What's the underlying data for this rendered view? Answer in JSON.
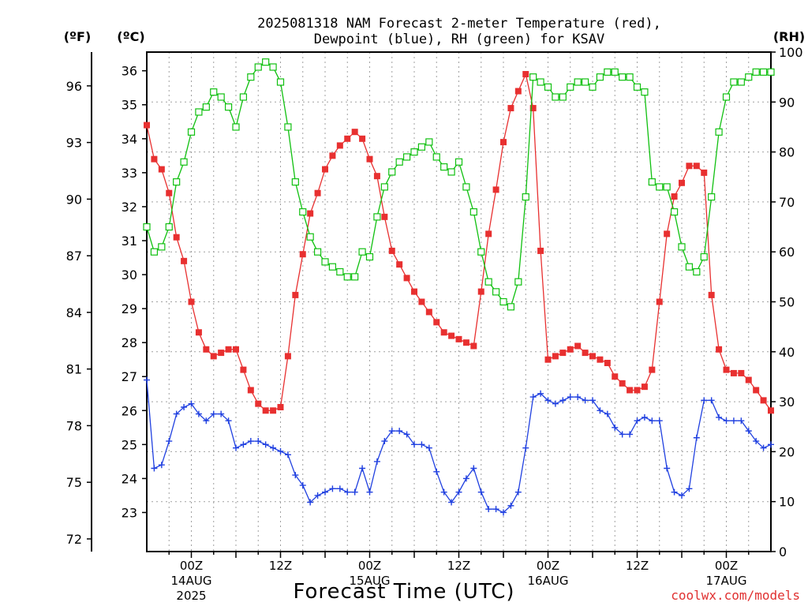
{
  "title": {
    "line1": "2025081318 NAM Forecast 2-meter Temperature (red),",
    "line2": "Dewpoint (blue), RH (green) for KSAV"
  },
  "units": {
    "left_f": "(ºF)",
    "left_c": "(ºC)",
    "right": "(RH)"
  },
  "xlabel": "Forecast Time (UTC)",
  "credit": "coolwx.com/models",
  "colors": {
    "temperature": "#e83030",
    "dewpoint": "#2040e0",
    "rh": "#10c010",
    "grid": "#a0a0a0"
  },
  "chart_data": {
    "type": "line",
    "x_unit": "forecast hour from 2025-08-13 18Z",
    "x_range": [
      0,
      84
    ],
    "x_ticks": [
      {
        "hour": 6,
        "label": "00Z",
        "date": "14AUG",
        "year": "2025"
      },
      {
        "hour": 18,
        "label": "12Z",
        "date": "",
        "year": ""
      },
      {
        "hour": 30,
        "label": "00Z",
        "date": "15AUG",
        "year": ""
      },
      {
        "hour": 42,
        "label": "12Z",
        "date": "",
        "year": ""
      },
      {
        "hour": 54,
        "label": "00Z",
        "date": "16AUG",
        "year": ""
      },
      {
        "hour": 66,
        "label": "12Z",
        "date": "",
        "year": ""
      },
      {
        "hour": 78,
        "label": "00Z",
        "date": "17AUG",
        "year": ""
      }
    ],
    "y_celsius": {
      "range": [
        21.85,
        36.55
      ],
      "ticks": [
        23,
        24,
        25,
        26,
        27,
        28,
        29,
        30,
        31,
        32,
        33,
        34,
        35,
        36
      ]
    },
    "y_fahrenheit": {
      "ticks": [
        72,
        75,
        78,
        81,
        84,
        87,
        90,
        93,
        96
      ]
    },
    "y_rh": {
      "range": [
        0,
        100
      ],
      "ticks": [
        0,
        10,
        20,
        30,
        40,
        50,
        60,
        70,
        80,
        90,
        100
      ]
    },
    "grid": true,
    "series": [
      {
        "name": "Temperature",
        "unit": "C",
        "marker": "filled-square",
        "x": [
          0,
          1,
          2,
          3,
          4,
          5,
          6,
          7,
          8,
          9,
          10,
          11,
          12,
          13,
          14,
          15,
          16,
          17,
          18,
          19,
          20,
          21,
          22,
          23,
          24,
          25,
          26,
          27,
          28,
          29,
          30,
          31,
          32,
          33,
          34,
          35,
          36,
          37,
          38,
          39,
          40,
          41,
          42,
          43,
          44,
          45,
          46,
          47,
          48,
          49,
          50,
          51,
          52,
          53,
          54,
          55,
          56,
          57,
          58,
          59,
          60,
          61,
          62,
          63,
          64,
          65,
          66,
          67,
          68,
          69,
          70,
          71,
          72,
          73,
          74,
          75,
          76,
          77,
          78,
          79,
          80,
          81,
          82,
          83,
          84
        ],
        "values": [
          34.4,
          33.4,
          33.1,
          32.4,
          31.1,
          30.4,
          29.2,
          28.3,
          27.8,
          27.6,
          27.7,
          27.8,
          27.8,
          27.2,
          26.6,
          26.2,
          26.0,
          26.0,
          26.1,
          27.6,
          29.4,
          30.6,
          31.8,
          32.4,
          33.1,
          33.5,
          33.8,
          34.0,
          34.2,
          34.0,
          33.4,
          32.9,
          31.7,
          30.7,
          30.3,
          29.9,
          29.5,
          29.2,
          28.9,
          28.6,
          28.3,
          28.2,
          28.1,
          28.0,
          27.9,
          29.5,
          31.2,
          32.5,
          33.9,
          34.9,
          35.4,
          35.9,
          34.9,
          30.7,
          27.5,
          27.6,
          27.7,
          27.8,
          27.9,
          27.7,
          27.6,
          27.5,
          27.4,
          27.0,
          26.8,
          26.6,
          26.6,
          26.7,
          27.2,
          29.2,
          31.2,
          32.3,
          32.7,
          33.2,
          33.2,
          33.0,
          29.4,
          27.8,
          27.2,
          27.1,
          27.1,
          26.9,
          26.6,
          26.3,
          26.0
        ]
      },
      {
        "name": "Dewpoint",
        "unit": "C",
        "marker": "plus",
        "x": [
          0,
          1,
          2,
          3,
          4,
          5,
          6,
          7,
          8,
          9,
          10,
          11,
          12,
          13,
          14,
          15,
          16,
          17,
          18,
          19,
          20,
          21,
          22,
          23,
          24,
          25,
          26,
          27,
          28,
          29,
          30,
          31,
          32,
          33,
          34,
          35,
          36,
          37,
          38,
          39,
          40,
          41,
          42,
          43,
          44,
          45,
          46,
          47,
          48,
          49,
          50,
          51,
          52,
          53,
          54,
          55,
          56,
          57,
          58,
          59,
          60,
          61,
          62,
          63,
          64,
          65,
          66,
          67,
          68,
          69,
          70,
          71,
          72,
          73,
          74,
          75,
          76,
          77,
          78,
          79,
          80,
          81,
          82,
          83,
          84
        ],
        "values": [
          26.9,
          24.3,
          24.4,
          25.1,
          25.9,
          26.1,
          26.2,
          25.9,
          25.7,
          25.9,
          25.9,
          25.7,
          24.9,
          25.0,
          25.1,
          25.1,
          25.0,
          24.9,
          24.8,
          24.7,
          24.1,
          23.8,
          23.3,
          23.5,
          23.6,
          23.7,
          23.7,
          23.6,
          23.6,
          24.3,
          23.6,
          24.5,
          25.1,
          25.4,
          25.4,
          25.3,
          25.0,
          25.0,
          24.9,
          24.2,
          23.6,
          23.3,
          23.6,
          24.0,
          24.3,
          23.6,
          23.1,
          23.1,
          23.0,
          23.2,
          23.6,
          24.9,
          26.4,
          26.5,
          26.3,
          26.2,
          26.3,
          26.4,
          26.4,
          26.3,
          26.3,
          26.0,
          25.9,
          25.5,
          25.3,
          25.3,
          25.7,
          25.8,
          25.7,
          25.7,
          24.3,
          23.6,
          23.5,
          23.7,
          25.2,
          26.3,
          26.3,
          25.8,
          25.7,
          25.7,
          25.7,
          25.4,
          25.1,
          24.9,
          25.0
        ]
      },
      {
        "name": "RH",
        "unit": "%",
        "marker": "open-square",
        "x": [
          0,
          1,
          2,
          3,
          4,
          5,
          6,
          7,
          8,
          9,
          10,
          11,
          12,
          13,
          14,
          15,
          16,
          17,
          18,
          19,
          20,
          21,
          22,
          23,
          24,
          25,
          26,
          27,
          28,
          29,
          30,
          31,
          32,
          33,
          34,
          35,
          36,
          37,
          38,
          39,
          40,
          41,
          42,
          43,
          44,
          45,
          46,
          47,
          48,
          49,
          50,
          51,
          52,
          53,
          54,
          55,
          56,
          57,
          58,
          59,
          60,
          61,
          62,
          63,
          64,
          65,
          66,
          67,
          68,
          69,
          70,
          71,
          72,
          73,
          74,
          75,
          76,
          77,
          78,
          79,
          80,
          81,
          82,
          83,
          84
        ],
        "values": [
          65,
          60,
          61,
          65,
          74,
          78,
          84,
          88,
          89,
          92,
          91,
          89,
          85,
          91,
          95,
          97,
          98,
          97,
          94,
          85,
          74,
          68,
          63,
          60,
          58,
          57,
          56,
          55,
          55,
          60,
          59,
          67,
          73,
          76,
          78,
          79,
          80,
          81,
          82,
          79,
          77,
          76,
          78,
          73,
          68,
          60,
          54,
          52,
          50,
          49,
          54,
          71,
          95,
          94,
          93,
          91,
          91,
          93,
          94,
          94,
          93,
          95,
          96,
          96,
          95,
          95,
          93,
          92,
          74,
          73,
          73,
          68,
          61,
          57,
          56,
          59,
          71,
          84,
          91,
          94,
          94,
          95,
          96,
          96,
          96
        ]
      }
    ]
  }
}
